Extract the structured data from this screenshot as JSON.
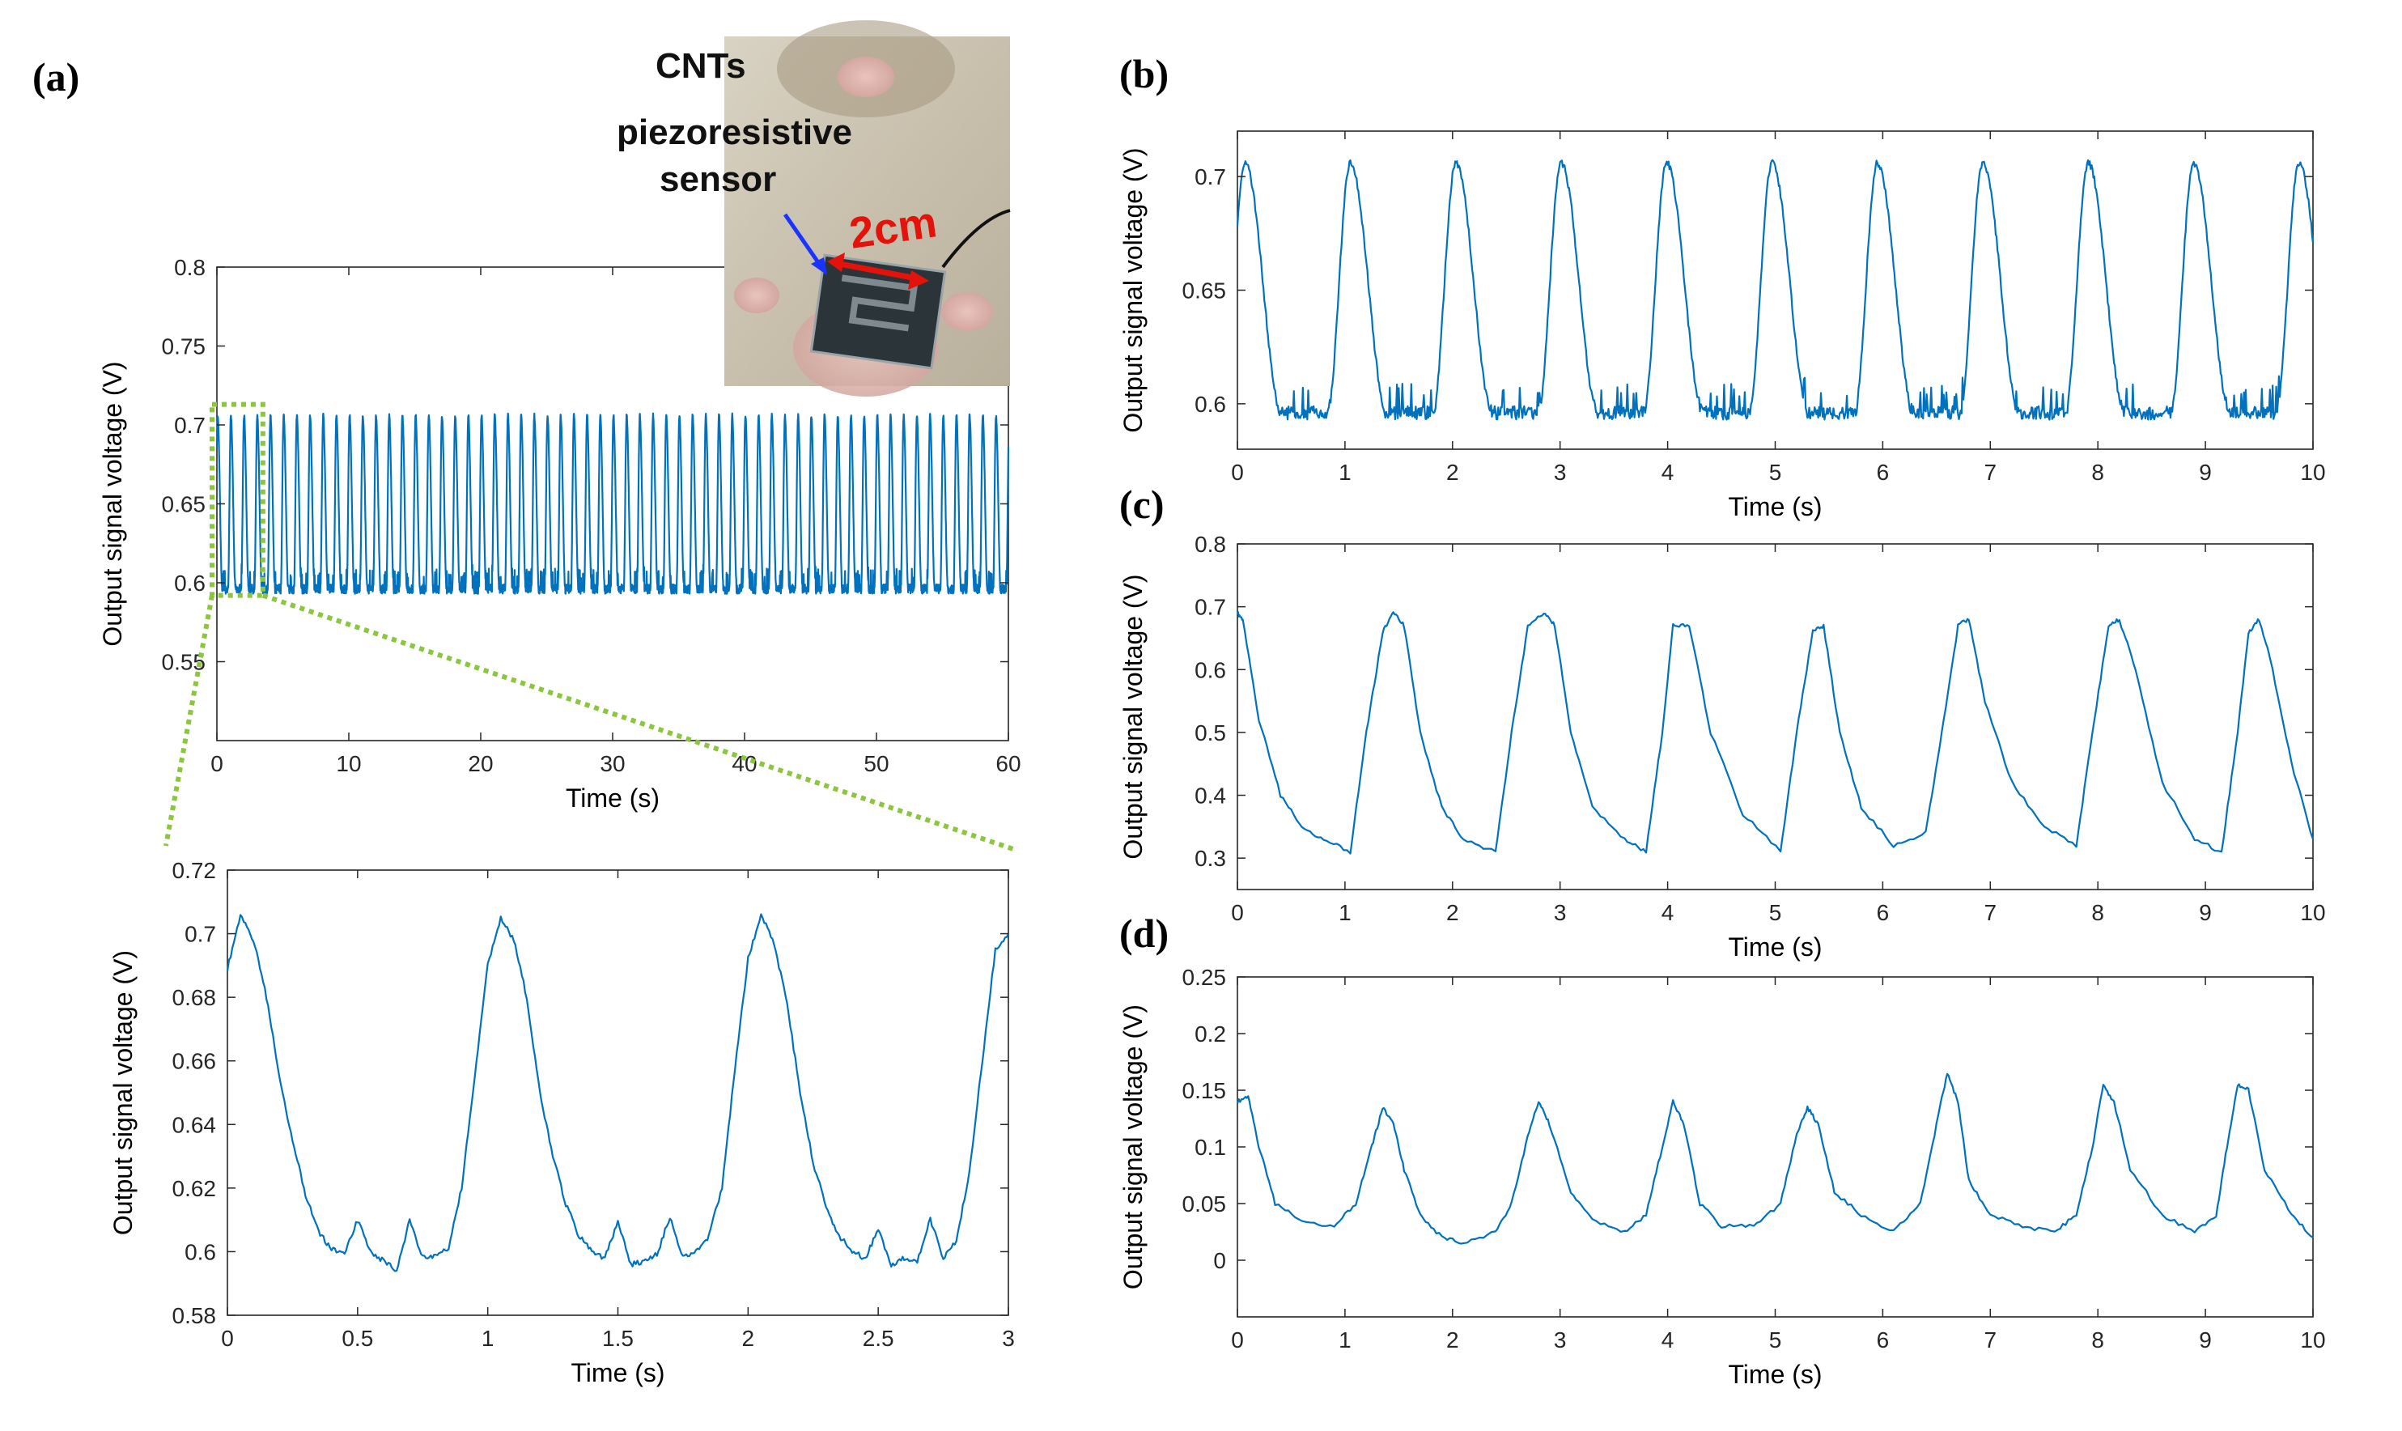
{
  "panel_labels": {
    "a": "(a)",
    "b": "(b)",
    "c": "(c)",
    "d": "(d)"
  },
  "photo": {
    "label_line1": "CNTs",
    "label_line2": "piezoresistive",
    "label_line3": "sensor",
    "distance": "2cm",
    "colors": {
      "arrow_blue": "#1a33ff",
      "arrow_red": "#e3120b"
    }
  },
  "colors": {
    "line": "#0072BD",
    "zoom_box": "#8cc63f",
    "axis": "#262626"
  },
  "chart_data": [
    {
      "id": "a_top",
      "type": "line",
      "title": "",
      "xlabel": "Time (s)",
      "ylabel": "Output signal voltage (V)",
      "xlim": [
        0,
        60
      ],
      "ylim": [
        0.5,
        0.8
      ],
      "xticks": [
        0,
        10,
        20,
        30,
        40,
        50,
        60
      ],
      "xtick_labels": [
        "0",
        "10",
        "20",
        "30",
        "40",
        "50",
        "60"
      ],
      "yticks": [
        0.55,
        0.6,
        0.65,
        0.7,
        0.75,
        0.8
      ],
      "ytick_labels": [
        "0.55",
        "0.6",
        "0.65",
        "0.7",
        "0.75",
        "0.8"
      ],
      "waveform": {
        "period": 1.0,
        "min": 0.596,
        "max": 0.706,
        "phase": 0.06,
        "peak_offset": 0.92
      },
      "zoom_region": {
        "x": [
          0,
          3
        ],
        "y": [
          0.596,
          0.706
        ]
      }
    },
    {
      "id": "a_bottom",
      "type": "line",
      "title": "",
      "xlabel": "Time (s)",
      "ylabel": "Output signal voltage (V)",
      "xlim": [
        0,
        3
      ],
      "ylim": [
        0.58,
        0.72
      ],
      "xticks": [
        0,
        0.5,
        1,
        1.5,
        2,
        2.5,
        3
      ],
      "xtick_labels": [
        "0",
        "0.5",
        "1",
        "1.5",
        "2",
        "2.5",
        "3"
      ],
      "yticks": [
        0.58,
        0.6,
        0.62,
        0.64,
        0.66,
        0.68,
        0.7,
        0.72
      ],
      "ytick_labels": [
        "0.58",
        "0.6",
        "0.62",
        "0.64",
        "0.66",
        "0.68",
        "0.7",
        "0.72"
      ],
      "x": [
        0,
        0.05,
        0.1,
        0.15,
        0.2,
        0.25,
        0.3,
        0.35,
        0.4,
        0.45,
        0.5,
        0.55,
        0.6,
        0.65,
        0.7,
        0.75,
        0.8,
        0.85,
        0.9,
        0.95,
        1.0,
        1.05,
        1.1,
        1.15,
        1.2,
        1.25,
        1.3,
        1.35,
        1.4,
        1.45,
        1.5,
        1.55,
        1.6,
        1.65,
        1.7,
        1.75,
        1.8,
        1.85,
        1.9,
        1.95,
        2.0,
        2.05,
        2.1,
        2.15,
        2.2,
        2.25,
        2.3,
        2.35,
        2.4,
        2.45,
        2.5,
        2.55,
        2.6,
        2.65,
        2.7,
        2.75,
        2.8,
        2.85,
        2.9,
        2.95,
        3.0
      ],
      "y": [
        0.689,
        0.706,
        0.698,
        0.68,
        0.655,
        0.635,
        0.618,
        0.606,
        0.601,
        0.599,
        0.61,
        0.6,
        0.597,
        0.594,
        0.61,
        0.598,
        0.599,
        0.601,
        0.62,
        0.655,
        0.69,
        0.705,
        0.698,
        0.68,
        0.65,
        0.63,
        0.615,
        0.605,
        0.6,
        0.598,
        0.609,
        0.596,
        0.597,
        0.599,
        0.611,
        0.598,
        0.6,
        0.605,
        0.62,
        0.658,
        0.692,
        0.706,
        0.697,
        0.678,
        0.65,
        0.628,
        0.614,
        0.605,
        0.6,
        0.598,
        0.607,
        0.596,
        0.598,
        0.597,
        0.61,
        0.598,
        0.603,
        0.625,
        0.66,
        0.695,
        0.7
      ]
    },
    {
      "id": "b",
      "type": "line",
      "title": "",
      "xlabel": "Time (s)",
      "ylabel": "Output signal voltage (V)",
      "xlim": [
        0,
        10
      ],
      "ylim": [
        0.58,
        0.72
      ],
      "xticks": [
        0,
        1,
        2,
        3,
        4,
        5,
        6,
        7,
        8,
        9,
        10
      ],
      "xtick_labels": [
        "0",
        "1",
        "2",
        "3",
        "4",
        "5",
        "6",
        "7",
        "8",
        "9",
        "10"
      ],
      "yticks": [
        0.6,
        0.65,
        0.7
      ],
      "ytick_labels": [
        "0.6",
        "0.65",
        "0.7"
      ],
      "waveform": {
        "period": 0.98,
        "min": 0.596,
        "max": 0.706,
        "phase": 0.07,
        "peak_offset": 0.95
      }
    },
    {
      "id": "c",
      "type": "line",
      "title": "",
      "xlabel": "Time (s)",
      "ylabel": "Output signal voltage (V)",
      "xlim": [
        0,
        10
      ],
      "ylim": [
        0.25,
        0.8
      ],
      "xticks": [
        0,
        1,
        2,
        3,
        4,
        5,
        6,
        7,
        8,
        9,
        10
      ],
      "xtick_labels": [
        "0",
        "1",
        "2",
        "3",
        "4",
        "5",
        "6",
        "7",
        "8",
        "9",
        "10"
      ],
      "yticks": [
        0.3,
        0.4,
        0.5,
        0.6,
        0.7,
        0.8
      ],
      "ytick_labels": [
        "0.3",
        "0.4",
        "0.5",
        "0.6",
        "0.7",
        "0.8"
      ],
      "x": [
        0,
        0.05,
        0.2,
        0.4,
        0.6,
        0.8,
        1.05,
        1.2,
        1.35,
        1.45,
        1.55,
        1.7,
        1.9,
        2.1,
        2.4,
        2.55,
        2.7,
        2.85,
        2.95,
        3.1,
        3.3,
        3.6,
        3.8,
        3.95,
        4.05,
        4.2,
        4.4,
        4.7,
        5.05,
        5.2,
        5.35,
        5.45,
        5.6,
        5.8,
        6.1,
        6.4,
        6.55,
        6.7,
        6.8,
        6.95,
        7.2,
        7.5,
        7.8,
        7.95,
        8.1,
        8.2,
        8.35,
        8.6,
        8.9,
        9.15,
        9.3,
        9.4,
        9.5,
        9.6,
        9.8,
        10.0
      ],
      "y": [
        0.69,
        0.68,
        0.52,
        0.4,
        0.35,
        0.33,
        0.31,
        0.5,
        0.66,
        0.69,
        0.67,
        0.5,
        0.38,
        0.33,
        0.31,
        0.5,
        0.67,
        0.69,
        0.67,
        0.5,
        0.38,
        0.33,
        0.31,
        0.5,
        0.67,
        0.67,
        0.5,
        0.37,
        0.31,
        0.5,
        0.66,
        0.67,
        0.5,
        0.38,
        0.32,
        0.34,
        0.5,
        0.67,
        0.68,
        0.55,
        0.42,
        0.35,
        0.32,
        0.5,
        0.67,
        0.68,
        0.6,
        0.42,
        0.33,
        0.31,
        0.5,
        0.66,
        0.68,
        0.62,
        0.45,
        0.33
      ]
    },
    {
      "id": "d",
      "type": "line",
      "title": "",
      "xlabel": "Time (s)",
      "ylabel": "Output signal voltage (V)",
      "xlim": [
        0,
        10
      ],
      "ylim": [
        -0.05,
        0.25
      ],
      "xticks": [
        0,
        1,
        2,
        3,
        4,
        5,
        6,
        7,
        8,
        9,
        10
      ],
      "xtick_labels": [
        "0",
        "1",
        "2",
        "3",
        "4",
        "5",
        "6",
        "7",
        "8",
        "9",
        "10"
      ],
      "yticks": [
        0,
        0.05,
        0.1,
        0.15,
        0.2,
        0.25
      ],
      "ytick_labels": [
        "0",
        "0.05",
        "0.1",
        "0.15",
        "0.2",
        "0.25"
      ],
      "x": [
        0,
        0.1,
        0.2,
        0.35,
        0.6,
        0.9,
        1.1,
        1.25,
        1.35,
        1.45,
        1.55,
        1.7,
        1.9,
        2.1,
        2.4,
        2.55,
        2.7,
        2.8,
        2.9,
        3.1,
        3.3,
        3.6,
        3.8,
        3.95,
        4.05,
        4.15,
        4.3,
        4.5,
        4.8,
        5.05,
        5.2,
        5.3,
        5.4,
        5.55,
        5.8,
        6.1,
        6.35,
        6.5,
        6.6,
        6.7,
        6.8,
        7.0,
        7.3,
        7.6,
        7.8,
        7.95,
        8.05,
        8.15,
        8.3,
        8.6,
        8.9,
        9.1,
        9.2,
        9.3,
        9.4,
        9.55,
        9.8,
        10.0
      ],
      "y": [
        0.14,
        0.145,
        0.1,
        0.05,
        0.035,
        0.03,
        0.05,
        0.1,
        0.135,
        0.12,
        0.08,
        0.04,
        0.02,
        0.015,
        0.025,
        0.05,
        0.11,
        0.14,
        0.12,
        0.06,
        0.035,
        0.025,
        0.04,
        0.1,
        0.14,
        0.12,
        0.05,
        0.03,
        0.03,
        0.05,
        0.11,
        0.135,
        0.12,
        0.06,
        0.04,
        0.025,
        0.05,
        0.12,
        0.165,
        0.14,
        0.07,
        0.04,
        0.03,
        0.025,
        0.04,
        0.1,
        0.155,
        0.14,
        0.08,
        0.04,
        0.025,
        0.04,
        0.1,
        0.155,
        0.15,
        0.08,
        0.04,
        0.02
      ]
    }
  ]
}
